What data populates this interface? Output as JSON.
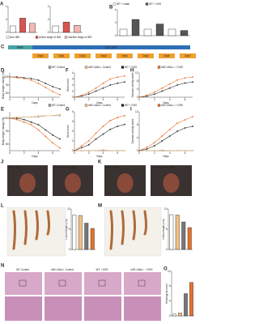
{
  "legends": [
    {
      "entries": [
        {
          "text": "Non-IBD",
          "color": "#ffffff"
        },
        {
          "text": "Active stage of IBD",
          "color": "#d9534f"
        },
        {
          "text": "Inactive stage of IBD",
          "color": "#f2b8b5"
        }
      ]
    },
    {
      "entries": [
        {
          "text": "WT + water",
          "color": "#ffffff"
        },
        {
          "text": "WT + DSS",
          "color": "#555555"
        }
      ]
    },
    {
      "entries": [
        {
          "text": "WT Control",
          "color": "#999999"
        },
        {
          "text": "miR-146a-/- Control",
          "color": "#f0c080"
        },
        {
          "text": "WT + DSS",
          "color": "#222222"
        },
        {
          "text": "miR-146a-/- + DSS",
          "color": "#e8702a"
        }
      ]
    },
    {
      "entries": [
        {
          "text": "WT Control",
          "color": "#999999"
        },
        {
          "text": "miR-146a-/- Control",
          "color": "#f0c080"
        },
        {
          "text": "WT + DSS",
          "color": "#222222"
        },
        {
          "text": "miR-146a-/- + DSS",
          "color": "#e8702a"
        }
      ]
    }
  ],
  "timeline": {
    "label": "C",
    "water": "Water",
    "dss": "DSS (3%)",
    "days": [
      "Day0",
      "Day1",
      "Day2",
      "Day3",
      "Day4",
      "Day5",
      "Day6",
      "Day7"
    ]
  },
  "line_panels": [
    {
      "label": "D",
      "ylabel": "Body weight change (%)",
      "xlabel": "Days",
      "ylim": [
        75,
        105
      ],
      "yticks": [
        80,
        90,
        100
      ],
      "xticks": [
        0,
        2,
        4,
        6
      ],
      "series": [
        {
          "color": "#222222",
          "values": [
            100,
            100,
            99,
            98,
            96,
            92,
            88,
            85
          ]
        },
        {
          "color": "#e8702a",
          "values": [
            100,
            99,
            98,
            96,
            92,
            87,
            82,
            78
          ]
        }
      ]
    },
    {
      "label": "F",
      "ylabel": "Stool score",
      "xlabel": "Days",
      "ylim": [
        0,
        4
      ],
      "yticks": [
        0,
        1,
        2,
        3,
        4
      ],
      "xticks": [
        0,
        2,
        4,
        6
      ],
      "series": [
        {
          "color": "#222222",
          "values": [
            0,
            0.2,
            0.5,
            1,
            1.5,
            2,
            2.3,
            2.5
          ]
        },
        {
          "color": "#e8702a",
          "values": [
            0,
            0.3,
            0.8,
            1.5,
            2.3,
            3,
            3.3,
            3.5
          ]
        }
      ]
    },
    {
      "label": "H",
      "ylabel": "Disease activity index",
      "xlabel": "Days",
      "ylim": [
        0,
        12
      ],
      "yticks": [
        0,
        4,
        8,
        12
      ],
      "xticks": [
        0,
        2,
        4,
        6
      ],
      "series": [
        {
          "color": "#222222",
          "values": [
            0,
            0.5,
            1.5,
            3,
            4.5,
            6,
            7,
            7.5
          ]
        },
        {
          "color": "#e8702a",
          "values": [
            0,
            1,
            2.5,
            4.5,
            6.5,
            8.5,
            9.5,
            10
          ]
        }
      ]
    },
    {
      "label": "E",
      "ylabel": "Body weight change (%)",
      "xlabel": "Days",
      "ylim": [
        75,
        105
      ],
      "yticks": [
        80,
        90,
        100
      ],
      "xticks": [
        0,
        2,
        4,
        6
      ],
      "series": [
        {
          "color": "#999999",
          "values": [
            100,
            100,
            101,
            101,
            101,
            102,
            102,
            102
          ]
        },
        {
          "color": "#f0c080",
          "values": [
            100,
            101,
            101,
            101,
            102,
            102,
            102,
            103
          ]
        },
        {
          "color": "#222222",
          "values": [
            100,
            100,
            99,
            97,
            95,
            91,
            87,
            84
          ]
        },
        {
          "color": "#e8702a",
          "values": [
            100,
            99,
            97,
            95,
            91,
            86,
            81,
            77
          ]
        }
      ]
    },
    {
      "label": "G",
      "ylabel": "Stool score",
      "xlabel": "Days",
      "ylim": [
        0,
        4
      ],
      "yticks": [
        0,
        1,
        2,
        3,
        4
      ],
      "xticks": [
        0,
        2,
        4,
        6
      ],
      "series": [
        {
          "color": "#999999",
          "values": [
            0,
            0,
            0,
            0,
            0,
            0,
            0,
            0
          ]
        },
        {
          "color": "#f0c080",
          "values": [
            0,
            0,
            0,
            0,
            0.1,
            0,
            0,
            0
          ]
        },
        {
          "color": "#222222",
          "values": [
            0,
            0.3,
            0.6,
            1.2,
            1.7,
            2.2,
            2.5,
            2.7
          ]
        },
        {
          "color": "#e8702a",
          "values": [
            0,
            0.5,
            1,
            1.8,
            2.5,
            3.1,
            3.4,
            3.6
          ]
        }
      ]
    },
    {
      "label": "I",
      "ylabel": "Disease activity index",
      "xlabel": "Days",
      "ylim": [
        0,
        12
      ],
      "yticks": [
        0,
        4,
        8,
        12
      ],
      "xticks": [
        0,
        2,
        4,
        6
      ],
      "series": [
        {
          "color": "#999999",
          "values": [
            0,
            0,
            0,
            0,
            0,
            0,
            0,
            0
          ]
        },
        {
          "color": "#f0c080",
          "values": [
            0,
            0,
            0,
            0.2,
            0,
            0,
            0,
            0
          ]
        },
        {
          "color": "#222222",
          "values": [
            0,
            0.5,
            1.5,
            3,
            4.5,
            6,
            7,
            7.5
          ]
        },
        {
          "color": "#e8702a",
          "values": [
            0,
            1,
            2.5,
            4.5,
            6.5,
            8.5,
            9.5,
            10.5
          ]
        }
      ]
    }
  ],
  "bar_panels": [
    {
      "label": "A",
      "ylim": [
        0,
        4
      ],
      "yticks": [
        0,
        2,
        4
      ],
      "bars": [
        {
          "value": 1,
          "color": "#ffffff"
        },
        {
          "value": 2.2,
          "color": "#d9534f"
        },
        {
          "value": 1.4,
          "color": "#f2b8b5"
        }
      ]
    },
    {
      "ylim": [
        0,
        4
      ],
      "yticks": [
        0,
        2,
        4
      ],
      "bars": [
        {
          "value": 1,
          "color": "#ffffff"
        },
        {
          "value": 1.6,
          "color": "#d9534f"
        },
        {
          "value": 1.1,
          "color": "#f2b8b5"
        }
      ]
    },
    {
      "label": "B",
      "ylim": [
        0,
        4
      ],
      "yticks": [
        0,
        2,
        4
      ],
      "bars": [
        {
          "value": 1,
          "color": "#ffffff"
        },
        {
          "value": 2.5,
          "color": "#555555"
        },
        {
          "value": 1,
          "color": "#ffffff"
        },
        {
          "value": 1.8,
          "color": "#555555"
        },
        {
          "value": 1,
          "color": "#ffffff"
        },
        {
          "value": 0.8,
          "color": "#555555"
        }
      ]
    },
    {
      "ylabel": "Colon length (cm)",
      "ylim": [
        0,
        10
      ],
      "yticks": [
        0,
        5,
        10
      ],
      "bars": [
        {
          "value": 8.5,
          "color": "#ffffff"
        },
        {
          "value": 8.4,
          "color": "#f0c080"
        },
        {
          "value": 6.5,
          "color": "#777777"
        },
        {
          "value": 5.2,
          "color": "#e8702a"
        }
      ]
    },
    {
      "ylabel": "Colon length (cm)",
      "ylim": [
        0,
        10
      ],
      "yticks": [
        0,
        5,
        10
      ],
      "bars": [
        {
          "value": 8.6,
          "color": "#ffffff"
        },
        {
          "value": 8.5,
          "color": "#f0c080"
        },
        {
          "value": 6.8,
          "color": "#777777"
        },
        {
          "value": 5.4,
          "color": "#e8702a"
        }
      ]
    },
    {
      "label": "O",
      "ylabel": "Histological score",
      "ylim": [
        0,
        12
      ],
      "yticks": [
        0,
        4,
        8,
        12
      ],
      "bars": [
        {
          "value": 0.5,
          "color": "#ffffff"
        },
        {
          "value": 0.8,
          "color": "#f0c080"
        },
        {
          "value": 6,
          "color": "#777777"
        },
        {
          "value": 9,
          "color": "#e8702a"
        }
      ]
    }
  ],
  "photo_panels": [
    {
      "label": "J",
      "captions": [
        "WT + DSS",
        "miR-146a-/- + DSS"
      ]
    },
    {
      "label": "K",
      "captions": [
        "WT + DSS",
        "miR-146a-/- + DSS"
      ]
    },
    {
      "label": "L"
    },
    {
      "label": "M"
    }
  ],
  "histology": {
    "label": "N",
    "headers": [
      "WT Control",
      "miR-146a-/- Control",
      "WT + DSS",
      "miR-146a-/- + DSS"
    ]
  }
}
